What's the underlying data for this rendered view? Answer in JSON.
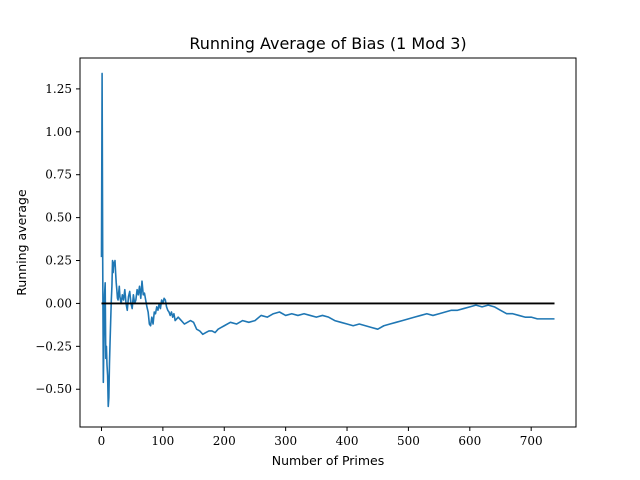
{
  "chart_data": {
    "type": "line",
    "title": "Running Average of Bias (1 Mod 3)",
    "xlabel": "Number of Primes",
    "ylabel": "Running average",
    "xlim": [
      -35,
      773
    ],
    "ylim": [
      -0.72,
      1.43
    ],
    "xticks": [
      0,
      100,
      200,
      300,
      400,
      500,
      600,
      700
    ],
    "xtick_labels": [
      "0",
      "100",
      "200",
      "300",
      "400",
      "500",
      "600",
      "700"
    ],
    "yticks": [
      -0.5,
      -0.25,
      0.0,
      0.25,
      0.5,
      0.75,
      1.0,
      1.25
    ],
    "ytick_labels": [
      "−0.50",
      "−0.25",
      "0.00",
      "0.25",
      "0.50",
      "0.75",
      "1.00",
      "1.25"
    ],
    "grid": false,
    "series": [
      {
        "color": "#1f77b4",
        "x": [
          0,
          1,
          2,
          3,
          4,
          5,
          6,
          7,
          8,
          9,
          10,
          11,
          12,
          13,
          14,
          15,
          16,
          17,
          18,
          19,
          20,
          21,
          22,
          23,
          24,
          25,
          26,
          27,
          28,
          29,
          30,
          32,
          34,
          36,
          38,
          40,
          42,
          44,
          46,
          48,
          50,
          52,
          54,
          56,
          58,
          60,
          62,
          64,
          66,
          68,
          70,
          72,
          74,
          76,
          78,
          80,
          82,
          84,
          86,
          88,
          90,
          92,
          94,
          96,
          98,
          100,
          102,
          104,
          106,
          108,
          110,
          112,
          114,
          116,
          118,
          120,
          125,
          130,
          135,
          140,
          145,
          150,
          155,
          160,
          165,
          170,
          175,
          180,
          185,
          190,
          195,
          200,
          210,
          220,
          230,
          240,
          250,
          260,
          270,
          280,
          290,
          300,
          310,
          320,
          330,
          340,
          350,
          360,
          370,
          380,
          390,
          400,
          410,
          420,
          430,
          440,
          450,
          460,
          470,
          480,
          490,
          500,
          510,
          520,
          530,
          540,
          550,
          560,
          570,
          580,
          590,
          600,
          610,
          620,
          630,
          640,
          650,
          660,
          670,
          680,
          690,
          700,
          710,
          720,
          730,
          738
        ],
        "y": [
          0.27,
          1.34,
          0.25,
          -0.46,
          -0.2,
          0.05,
          0.12,
          -0.32,
          -0.25,
          -0.36,
          -0.42,
          -0.6,
          -0.55,
          -0.35,
          -0.22,
          -0.1,
          0.02,
          0.1,
          0.25,
          0.18,
          0.24,
          0.22,
          0.25,
          0.18,
          0.12,
          0.08,
          0.03,
          0.02,
          0.06,
          0.1,
          0.04,
          0.0,
          0.05,
          0.02,
          0.08,
          0.0,
          -0.04,
          0.04,
          0.07,
          0.0,
          -0.03,
          0.05,
          0.0,
          0.02,
          0.08,
          0.05,
          0.1,
          0.03,
          0.13,
          0.05,
          0.06,
          0.02,
          -0.02,
          -0.05,
          -0.12,
          -0.13,
          -0.08,
          -0.12,
          -0.05,
          -0.06,
          -0.02,
          -0.04,
          0.0,
          -0.03,
          0.02,
          0.0,
          0.03,
          0.02,
          -0.02,
          -0.04,
          -0.05,
          -0.07,
          -0.05,
          -0.08,
          -0.06,
          -0.1,
          -0.08,
          -0.1,
          -0.12,
          -0.11,
          -0.1,
          -0.11,
          -0.15,
          -0.16,
          -0.18,
          -0.17,
          -0.16,
          -0.16,
          -0.17,
          -0.15,
          -0.14,
          -0.13,
          -0.11,
          -0.12,
          -0.1,
          -0.11,
          -0.1,
          -0.07,
          -0.08,
          -0.06,
          -0.05,
          -0.07,
          -0.06,
          -0.07,
          -0.06,
          -0.07,
          -0.08,
          -0.07,
          -0.08,
          -0.1,
          -0.11,
          -0.12,
          -0.13,
          -0.12,
          -0.13,
          -0.14,
          -0.15,
          -0.13,
          -0.12,
          -0.11,
          -0.1,
          -0.09,
          -0.08,
          -0.07,
          -0.06,
          -0.07,
          -0.06,
          -0.05,
          -0.04,
          -0.04,
          -0.03,
          -0.02,
          -0.01,
          -0.02,
          -0.01,
          -0.02,
          -0.04,
          -0.06,
          -0.06,
          -0.07,
          -0.08,
          -0.08,
          -0.09,
          -0.09,
          -0.09,
          -0.09
        ]
      },
      {
        "color": "#000000",
        "x": [
          0,
          738
        ],
        "y": [
          0,
          0
        ]
      }
    ]
  }
}
